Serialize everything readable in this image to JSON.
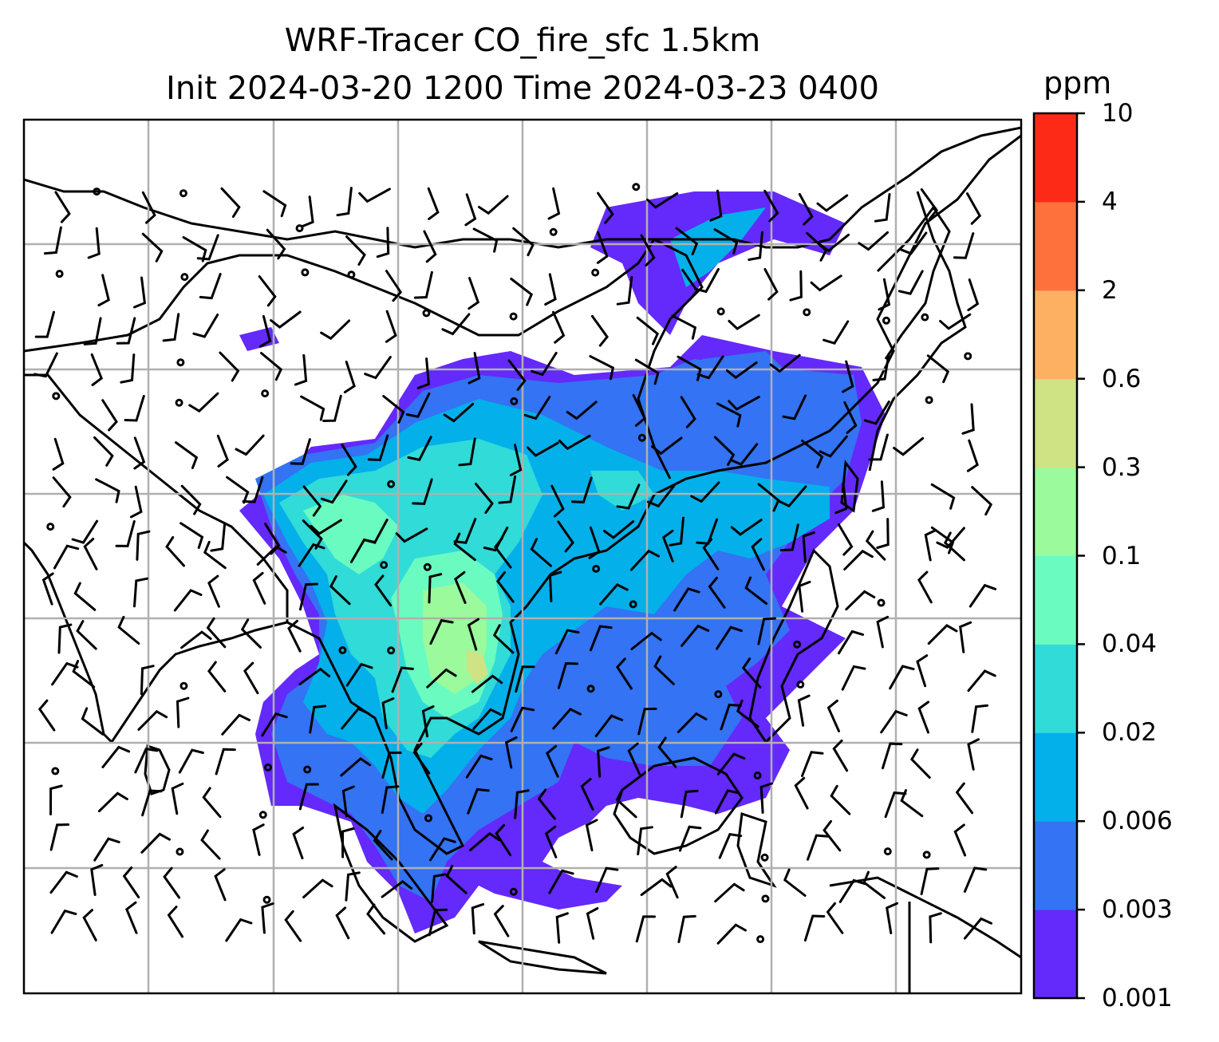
{
  "title": {
    "line1": "WRF-Tracer CO_fire_sfc 1.5km",
    "line2": "Init 2024-03-20 1200 Time 2024-03-23 0400"
  },
  "colorbar": {
    "unit": "ppm",
    "levels": [
      "0.001",
      "0.003",
      "0.006",
      "0.02",
      "0.04",
      "0.1",
      "0.3",
      "0.6",
      "2",
      "4",
      "10"
    ],
    "colors": [
      "#6429fb",
      "#3373f4",
      "#03b0ea",
      "#30dbd8",
      "#6afbc1",
      "#9bfa9b",
      "#cfe284",
      "#feb062",
      "#fe713d",
      "#fd2a17"
    ]
  },
  "map": {
    "region": "Southeast Asia / East Asia",
    "field": "CO_fire_sfc",
    "overlays": [
      "coastlines",
      "country-borders",
      "lat-lon-gridlines",
      "wind-barbs"
    ],
    "gridlines": "on",
    "colors": {
      "gridline": "#b0b0b0",
      "coastline": "#000000",
      "barb": "#000000"
    }
  }
}
